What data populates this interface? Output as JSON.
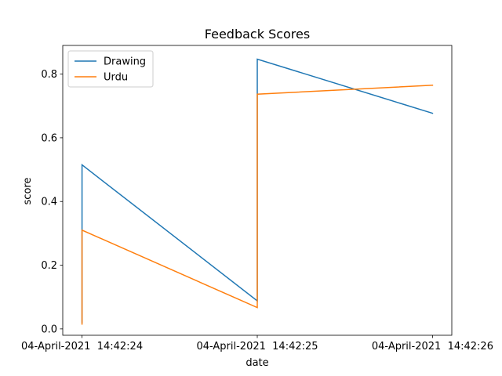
{
  "chart_data": {
    "type": "line",
    "title": "Feedback Scores",
    "xlabel": "date",
    "ylabel": "score",
    "x_ticks": [
      "04-April-2021  14:42:24",
      "04-April-2021  14:42:25",
      "04-April-2021  14:42:26"
    ],
    "x": [
      "2021-04-04 14:42:24.000",
      "2021-04-04 14:42:24.000",
      "2021-04-04 14:42:25.000",
      "2021-04-04 14:42:25.000",
      "2021-04-04 14:42:26.000"
    ],
    "y_ticks": [
      0.0,
      0.2,
      0.4,
      0.6,
      0.8
    ],
    "y_tick_labels": [
      "0.0",
      "0.2",
      "0.4",
      "0.6",
      "0.8"
    ],
    "xlim": [
      "2021-04-04 14:42:23.890",
      "2021-04-04 14:42:26.110"
    ],
    "ylim": [
      -0.02,
      0.89
    ],
    "legend_position": "upper-left",
    "grid": false,
    "series": [
      {
        "name": "Drawing",
        "color": "#1f77b4",
        "values": [
          0.02,
          0.515,
          0.088,
          0.847,
          0.677
        ]
      },
      {
        "name": "Urdu",
        "color": "#ff7f0e",
        "values": [
          0.015,
          0.31,
          0.067,
          0.737,
          0.765
        ]
      }
    ]
  }
}
